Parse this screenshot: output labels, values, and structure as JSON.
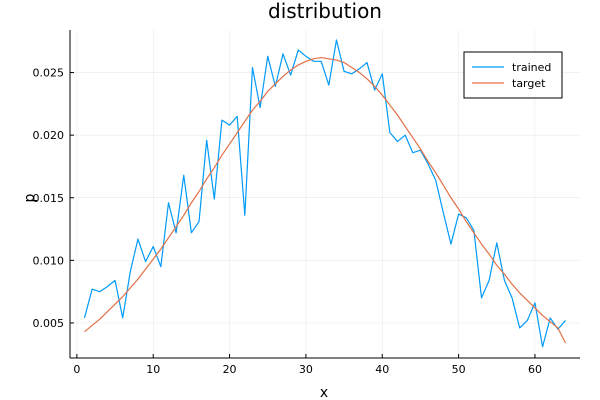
{
  "chart_data": {
    "type": "line",
    "title": "distribution",
    "xlabel": "x",
    "ylabel": "p",
    "xlim": [
      -0.9,
      65.9
    ],
    "ylim": [
      0.0022,
      0.0284
    ],
    "xticks": [
      0,
      10,
      20,
      30,
      40,
      50,
      60
    ],
    "yticks": [
      0.005,
      0.01,
      0.015,
      0.02,
      0.025
    ],
    "ytick_labels": [
      "0.005",
      "0.010",
      "0.015",
      "0.020",
      "0.025"
    ],
    "grid": true,
    "legend_position": "top-right",
    "x": [
      1,
      2,
      3,
      4,
      5,
      6,
      7,
      8,
      9,
      10,
      11,
      12,
      13,
      14,
      15,
      16,
      17,
      18,
      19,
      20,
      21,
      22,
      23,
      24,
      25,
      26,
      27,
      28,
      29,
      30,
      31,
      32,
      33,
      34,
      35,
      36,
      37,
      38,
      39,
      40,
      41,
      42,
      43,
      44,
      45,
      46,
      47,
      48,
      49,
      50,
      51,
      52,
      53,
      54,
      55,
      56,
      57,
      58,
      59,
      60,
      61,
      62,
      63,
      64
    ],
    "series": [
      {
        "name": "trained",
        "color": "#009AFA",
        "values": [
          0.0054,
          0.0077,
          0.0075,
          0.0079,
          0.0084,
          0.0054,
          0.0091,
          0.0117,
          0.0099,
          0.0111,
          0.0095,
          0.0146,
          0.0122,
          0.0168,
          0.0122,
          0.0131,
          0.0196,
          0.0149,
          0.0212,
          0.0208,
          0.0215,
          0.0136,
          0.0254,
          0.0222,
          0.0263,
          0.0239,
          0.0265,
          0.0248,
          0.0268,
          0.0263,
          0.0259,
          0.0259,
          0.024,
          0.0276,
          0.0251,
          0.0249,
          0.0253,
          0.0258,
          0.0236,
          0.0249,
          0.0202,
          0.0195,
          0.02,
          0.0186,
          0.0188,
          0.0177,
          0.0164,
          0.0138,
          0.0113,
          0.0137,
          0.0134,
          0.0124,
          0.007,
          0.0084,
          0.0114,
          0.0084,
          0.007,
          0.0046,
          0.0052,
          0.0066,
          0.0031,
          0.0054,
          0.0045,
          0.0052
        ]
      },
      {
        "name": "target",
        "color": "#E36F47",
        "values": [
          0.0043,
          0.0048,
          0.0053,
          0.0059,
          0.0065,
          0.0071,
          0.0078,
          0.0085,
          0.0093,
          0.0101,
          0.0109,
          0.0118,
          0.0127,
          0.0136,
          0.0146,
          0.0155,
          0.0165,
          0.0174,
          0.0184,
          0.0193,
          0.0202,
          0.0211,
          0.022,
          0.0227,
          0.0235,
          0.0241,
          0.0247,
          0.0252,
          0.0256,
          0.0259,
          0.0261,
          0.0262,
          0.0261,
          0.026,
          0.0258,
          0.0254,
          0.025,
          0.0245,
          0.0239,
          0.0232,
          0.0224,
          0.0216,
          0.0207,
          0.0198,
          0.0189,
          0.0179,
          0.017,
          0.016,
          0.015,
          0.0141,
          0.0131,
          0.0122,
          0.0113,
          0.0105,
          0.0096,
          0.0089,
          0.0081,
          0.0074,
          0.0068,
          0.0062,
          0.0056,
          0.0051,
          0.0046,
          0.0034
        ]
      }
    ]
  }
}
